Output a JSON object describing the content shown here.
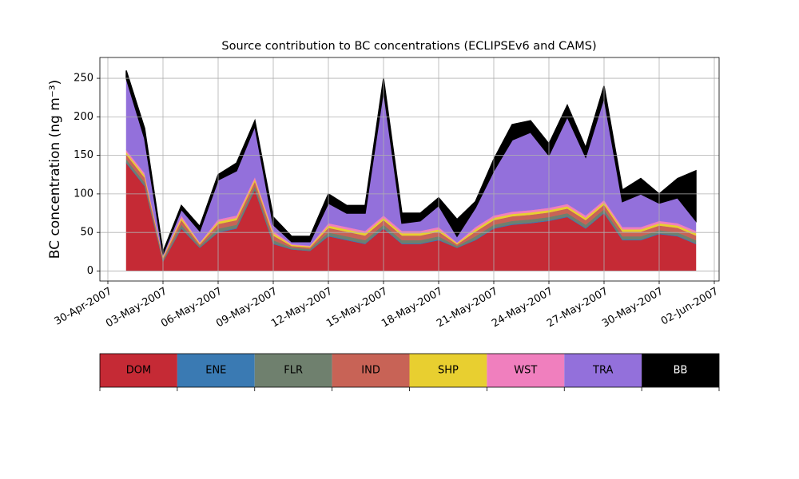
{
  "chart_data": {
    "type": "stacked_area",
    "title": "Source contribution to BC concentrations (ECLIPSEv6 and CAMS)",
    "ylabel": "BC concentration (ng m⁻³)",
    "x": [
      "2007-05-01",
      "2007-05-02",
      "2007-05-03",
      "2007-05-04",
      "2007-05-05",
      "2007-05-06",
      "2007-05-07",
      "2007-05-08",
      "2007-05-09",
      "2007-05-10",
      "2007-05-11",
      "2007-05-12",
      "2007-05-13",
      "2007-05-14",
      "2007-05-15",
      "2007-05-16",
      "2007-05-17",
      "2007-05-18",
      "2007-05-19",
      "2007-05-20",
      "2007-05-21",
      "2007-05-22",
      "2007-05-23",
      "2007-05-24",
      "2007-05-25",
      "2007-05-26",
      "2007-05-27",
      "2007-05-28",
      "2007-05-29",
      "2007-05-30",
      "2007-05-31",
      "2007-06-01"
    ],
    "series": [
      {
        "name": "DOM",
        "color": "#c52a35",
        "values": [
          140,
          110,
          12,
          55,
          30,
          50,
          55,
          105,
          35,
          28,
          26,
          45,
          40,
          35,
          55,
          35,
          35,
          40,
          30,
          40,
          55,
          60,
          62,
          65,
          70,
          55,
          75,
          40,
          40,
          48,
          45,
          35
        ]
      },
      {
        "name": "ENE",
        "color": "#3a7ab3",
        "values": [
          1,
          1,
          0.5,
          1,
          0.5,
          1,
          1,
          1,
          1,
          0.5,
          0.5,
          1,
          1,
          1,
          1,
          1,
          1,
          1,
          0.5,
          1,
          1,
          1,
          1,
          1,
          1,
          1,
          1,
          1,
          1,
          1,
          1,
          1
        ]
      },
      {
        "name": "FLR",
        "color": "#6f806e",
        "values": [
          4,
          4,
          2,
          4,
          2,
          4,
          4,
          4,
          4,
          2,
          2,
          4,
          4,
          4,
          4,
          4,
          4,
          4,
          2,
          4,
          4,
          4,
          4,
          4,
          4,
          4,
          4,
          4,
          4,
          4,
          4,
          4
        ]
      },
      {
        "name": "IND",
        "color": "#c86356",
        "values": [
          6,
          6,
          2,
          6,
          2,
          6,
          6,
          6,
          6,
          2,
          2,
          6,
          6,
          6,
          6,
          6,
          6,
          6,
          2,
          6,
          6,
          6,
          6,
          6,
          6,
          6,
          6,
          6,
          6,
          6,
          6,
          6
        ]
      },
      {
        "name": "SHP",
        "color": "#e8cf30",
        "values": [
          3,
          3,
          1.5,
          3,
          1.5,
          3,
          3,
          3,
          3,
          1.5,
          1.5,
          3,
          3,
          3,
          3,
          3,
          3,
          3,
          1.5,
          3,
          3,
          3,
          3,
          3,
          3,
          3,
          3,
          3,
          3,
          3,
          3,
          3
        ]
      },
      {
        "name": "WST",
        "color": "#f07fbe",
        "values": [
          3,
          3,
          1,
          3,
          1,
          3,
          3,
          3,
          3,
          1,
          1,
          3,
          3,
          3,
          3,
          3,
          3,
          3,
          1,
          3,
          3,
          3,
          3,
          3,
          3,
          3,
          3,
          3,
          3,
          3,
          3,
          3
        ]
      },
      {
        "name": "TRA",
        "color": "#9370db",
        "values": [
          93,
          45,
          3,
          8,
          15,
          51,
          58,
          66,
          8,
          3,
          5,
          26,
          18,
          23,
          163,
          10,
          13,
          28,
          8,
          25,
          58,
          93,
          101,
          68,
          113,
          76,
          133,
          33,
          43,
          23,
          33,
          13
        ]
      },
      {
        "name": "BB",
        "color": "#000000",
        "values": [
          10,
          13,
          3,
          5,
          6,
          7,
          10,
          7,
          10,
          7,
          7,
          12,
          10,
          10,
          15,
          13,
          10,
          10,
          22,
          8,
          15,
          20,
          15,
          15,
          15,
          12,
          15,
          15,
          20,
          12,
          25,
          65
        ]
      }
    ],
    "xlim": [
      "2007-04-30",
      "2007-06-02"
    ],
    "xticks": [
      {
        "value": "2007-04-30",
        "label": "30-Apr-2007"
      },
      {
        "value": "2007-05-03",
        "label": "03-May-2007"
      },
      {
        "value": "2007-05-06",
        "label": "06-May-2007"
      },
      {
        "value": "2007-05-09",
        "label": "09-May-2007"
      },
      {
        "value": "2007-05-12",
        "label": "12-May-2007"
      },
      {
        "value": "2007-05-15",
        "label": "15-May-2007"
      },
      {
        "value": "2007-05-18",
        "label": "18-May-2007"
      },
      {
        "value": "2007-05-21",
        "label": "21-May-2007"
      },
      {
        "value": "2007-05-24",
        "label": "24-May-2007"
      },
      {
        "value": "2007-05-27",
        "label": "27-May-2007"
      },
      {
        "value": "2007-05-30",
        "label": "30-May-2007"
      },
      {
        "value": "2007-06-02",
        "label": "02-Jun-2007"
      }
    ],
    "ylim": [
      -13,
      277
    ],
    "yticks": [
      0,
      50,
      100,
      150,
      200,
      250
    ],
    "grid": true
  }
}
